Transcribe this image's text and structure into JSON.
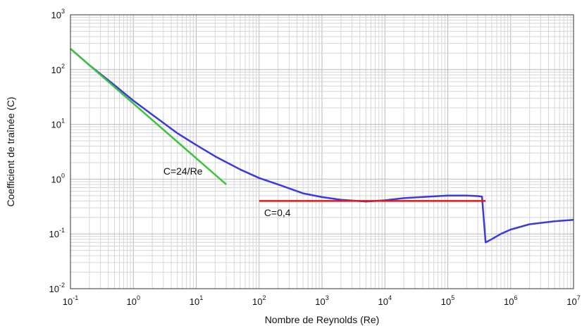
{
  "chart_data": {
    "type": "line",
    "title": "",
    "xlabel": "Nombre de Reynolds (Re)",
    "ylabel": "Coefficient de traînée (C)",
    "xscale": "log",
    "yscale": "log",
    "xlim": [
      0.1,
      10000000
    ],
    "ylim": [
      0.01,
      1000
    ],
    "grid": true,
    "x_ticks": [
      {
        "base": "10",
        "exp": "-1"
      },
      {
        "base": "10",
        "exp": "0"
      },
      {
        "base": "10",
        "exp": "1"
      },
      {
        "base": "10",
        "exp": "2"
      },
      {
        "base": "10",
        "exp": "3"
      },
      {
        "base": "10",
        "exp": "4"
      },
      {
        "base": "10",
        "exp": "5"
      },
      {
        "base": "10",
        "exp": "6"
      },
      {
        "base": "10",
        "exp": "7"
      }
    ],
    "y_ticks": [
      {
        "base": "10",
        "exp": "-2"
      },
      {
        "base": "10",
        "exp": "-1"
      },
      {
        "base": "10",
        "exp": "0"
      },
      {
        "base": "10",
        "exp": "1"
      },
      {
        "base": "10",
        "exp": "2"
      },
      {
        "base": "10",
        "exp": "3"
      }
    ],
    "series": [
      {
        "color": "#3a3adf",
        "x": [
          0.1,
          0.2,
          0.5,
          1,
          2,
          5,
          10,
          20,
          50,
          100,
          200,
          500,
          1000,
          2000,
          5000,
          10000,
          20000,
          50000,
          100000,
          200000,
          300000,
          350000,
          400000,
          500000,
          700000,
          1000000,
          2000000,
          5000000,
          10000000
        ],
        "y": [
          240,
          120,
          52,
          27,
          15,
          6.9,
          4.2,
          2.6,
          1.5,
          1.05,
          0.8,
          0.55,
          0.47,
          0.42,
          0.39,
          0.41,
          0.45,
          0.48,
          0.5,
          0.5,
          0.49,
          0.48,
          0.07,
          0.08,
          0.1,
          0.12,
          0.15,
          0.17,
          0.18
        ]
      },
      {
        "color": "#3cc43c",
        "x": [
          0.1,
          30
        ],
        "y": [
          240,
          0.8
        ]
      },
      {
        "color": "#e01818",
        "x": [
          100,
          400000
        ],
        "y": [
          0.4,
          0.4
        ]
      }
    ],
    "annotations": [
      {
        "text": "C=24/Re",
        "x": 3,
        "y": 1.2
      },
      {
        "text": "C=0,4",
        "x": 120,
        "y": 0.21
      }
    ]
  }
}
